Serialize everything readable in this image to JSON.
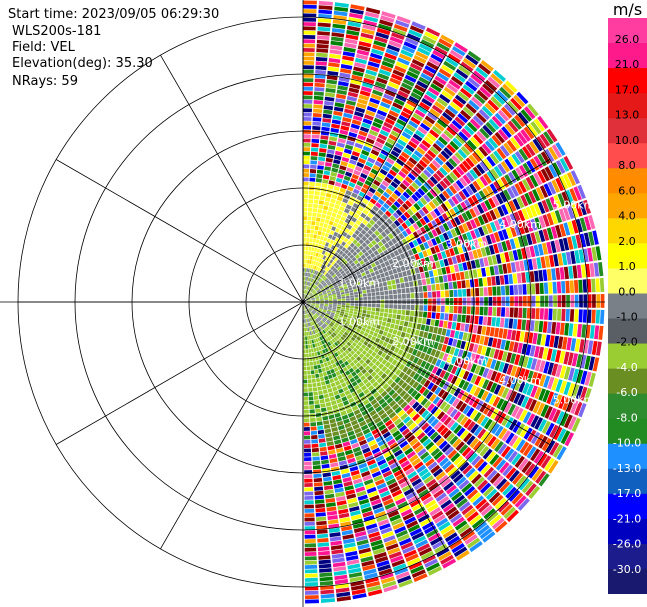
{
  "header": {
    "start_time": "Start time: 2023/09/05 06:29:30",
    "instrument": "WLS200s-181",
    "field": "Field: VEL",
    "elevation": "Elevation(deg): 35.30",
    "nrays": "NRays: 59"
  },
  "chart_data": {
    "type": "heatmap",
    "projection": "polar-ppi",
    "field": "VEL",
    "units": "m/s",
    "nrays": 59,
    "azimuth_coverage_deg": [
      0,
      180
    ],
    "range_rings_km": [
      1,
      2,
      3,
      4,
      5
    ],
    "range_ring_labels_upper": [
      "1.00km",
      "2.00km",
      "3.00km",
      "4.00km",
      "5.00km"
    ],
    "range_ring_labels_lower": [
      "1.00km",
      "2.00km",
      "3.00km",
      "4.00km",
      "5.00km"
    ],
    "max_range_km": 5.3,
    "spoke_interval_deg": 30,
    "colorbar": {
      "label": "m/s",
      "ticks": [
        "26.0",
        "21.0",
        "17.0",
        "13.0",
        "10.0",
        "8.0",
        "6.0",
        "4.0",
        "2.0",
        "1.0",
        "0.0",
        "-1.0",
        "-2.0",
        "-4.0",
        "-6.0",
        "-8.0",
        "-10.0",
        "-13.0",
        "-17.0",
        "-21.0",
        "-26.0",
        "-30.0"
      ],
      "colors": [
        "#ff3ca0",
        "#ff1a8c",
        "#ff0000",
        "#e61919",
        "#e0303a",
        "#ff4d4d",
        "#ff8c00",
        "#ffa500",
        "#ffd700",
        "#ffff00",
        "#ffff66",
        "#7a8088",
        "#5a5f66",
        "#9acd32",
        "#6b8e23",
        "#2e8b2e",
        "#228b22",
        "#1e90ff",
        "#1060c0",
        "#0000ff",
        "#0000c0",
        "#1c1c8c",
        "#191970"
      ]
    }
  }
}
